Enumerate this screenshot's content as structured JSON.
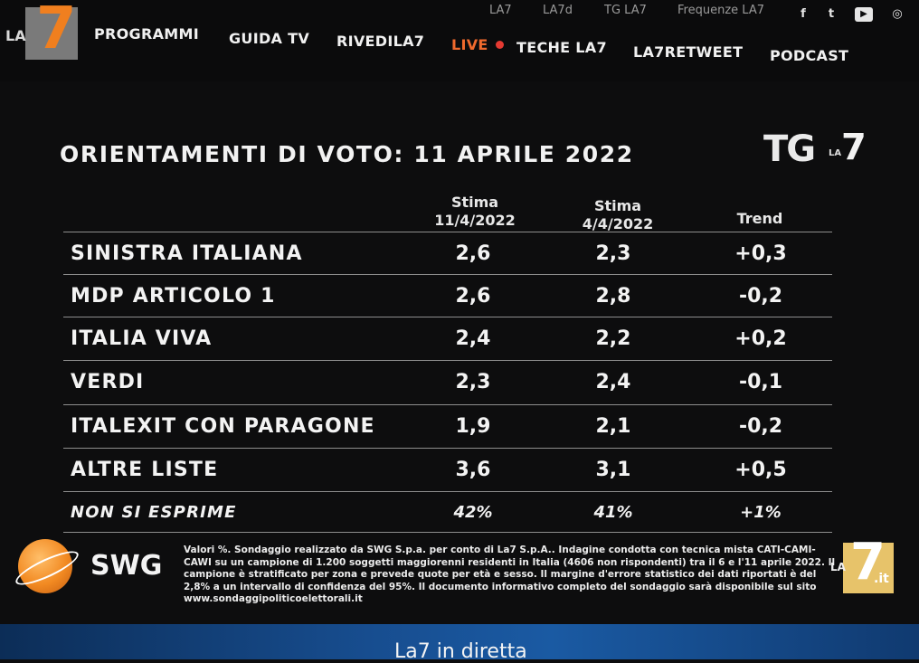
{
  "brand": {
    "la": "LA",
    "seven": "7",
    "it": ".it"
  },
  "topnav": {
    "sub": [
      "LA7",
      "LA7d",
      "TG LA7",
      "Frequenze LA7"
    ],
    "social": [
      {
        "icon": "facebook-icon",
        "glyph": "f"
      },
      {
        "icon": "twitter-icon",
        "glyph": "t"
      },
      {
        "icon": "youtube-icon",
        "glyph": "▶"
      },
      {
        "icon": "instagram-icon",
        "glyph": "◎"
      }
    ],
    "main": [
      "PROGRAMMI",
      "GUIDA TV",
      "RIVEDILA7",
      "LIVE",
      "TECHE LA7",
      "LA7RETWEET",
      "PODCAST"
    ],
    "live_color": "#f06a2d"
  },
  "poll": {
    "title": "ORIENTAMENTI DI VOTO: 11 APRILE 2022",
    "tg_logo": {
      "tg": "TG",
      "la": "LA",
      "seven": "7"
    },
    "columns": [
      {
        "line1": "Stima",
        "line2": "11/4/2022"
      },
      {
        "line1": "Stima",
        "line2": "4/4/2022"
      },
      {
        "line1": "Trend",
        "line2": ""
      }
    ],
    "rows": [
      {
        "party": "SINISTRA ITALIANA",
        "current": "2,6",
        "previous": "2,3",
        "trend": "+0,3"
      },
      {
        "party": "MDP ARTICOLO 1",
        "current": "2,6",
        "previous": "2,8",
        "trend": "-0,2"
      },
      {
        "party": "ITALIA VIVA",
        "current": "2,4",
        "previous": "2,2",
        "trend": "+0,2"
      },
      {
        "party": "VERDI",
        "current": "2,3",
        "previous": "2,4",
        "trend": "-0,1"
      },
      {
        "party": "ITALEXIT CON PARAGONE",
        "current": "1,9",
        "previous": "2,1",
        "trend": "-0,2"
      },
      {
        "party": "ALTRE LISTE",
        "current": "3,6",
        "previous": "3,1",
        "trend": "+0,5"
      },
      {
        "party": "NON SI ESPRIME",
        "current": "42%",
        "previous": "41%",
        "trend": "+1%"
      }
    ]
  },
  "footer": {
    "swg": "SWG",
    "disclaimer": "Valori %. Sondaggio realizzato da SWG S.p.a. per conto di La7 S.p.A.. Indagine condotta con tecnica mista CATI-CAMI-CAWI su un campione di 1.200 soggetti maggiorenni residenti in Italia (4606 non rispondenti) tra il 6 e l'11 aprile 2022. Il campione è stratificato per zona e prevede quote per età e sesso. Il margine d'errore statistico dei dati riportati è del 2,8% a un intervallo di confidenza del 95%. Il documento informativo completo del sondaggio sarà disponibile sul sito www.sondaggipoliticoelettorali.it",
    "banner": "La7 in diretta"
  },
  "colors": {
    "accent_orange": "#f07f1f",
    "banner_blue": "#1a5aa3"
  }
}
